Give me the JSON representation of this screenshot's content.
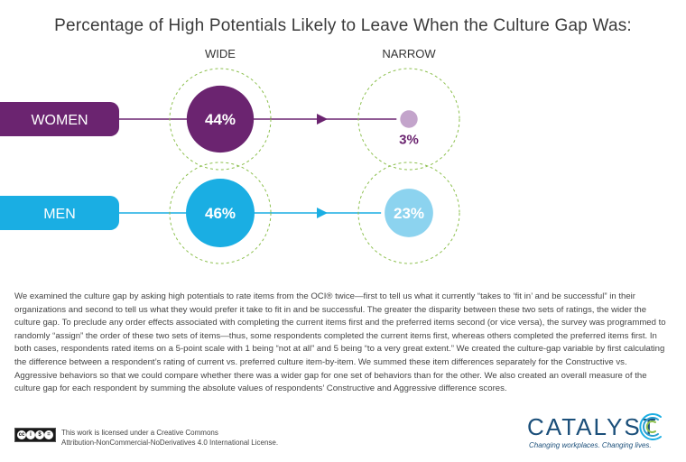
{
  "chart_data": {
    "type": "bubble-comparison",
    "title": "Percentage of High Potentials Likely to Leave When the Culture Gap Was:",
    "columns": [
      "WIDE",
      "NARROW"
    ],
    "series": [
      {
        "name": "WOMEN",
        "values": [
          44,
          3
        ],
        "labels": [
          "44%",
          "3%"
        ],
        "color": "#6b2470",
        "narrow_color": "#c3a4cb"
      },
      {
        "name": "MEN",
        "values": [
          46,
          23
        ],
        "labels": [
          "46%",
          "23%"
        ],
        "color": "#1aaee3",
        "narrow_color": "#8cd3ef"
      }
    ],
    "scale_max": 100,
    "outline_color": "#8dc04f"
  },
  "methodology": "We examined the culture gap by asking high potentials to rate items from the OCI® twice—first to tell us what it currently “takes to ‘fit in’ and be successful” in their organizations and second to tell us what they would prefer it take to fit in and be successful. The greater the disparity between these two sets of ratings, the wider the culture gap. To preclude any order effects associated with completing the current items first and the preferred items second (or vice versa), the survey was programmed to randomly “assign” the order of these two sets of items—thus, some respondents completed the current items first, whereas others completed the preferred items first. In both cases, respondents rated items on a 5-point scale with 1 being “not at all” and 5 being “to a very great extent.” We created the culture-gap variable by first calculating the difference between a respondent’s rating of current vs. preferred culture item-by-item. We summed these item differences separately for the Constructive vs. Aggressive behaviors so that we could compare whether there was a wider gap for one set of behaviors than for the other. We also created an overall measure of the culture gap for each respondent by summing the absolute values of respondents’ Constructive and Aggressive difference scores.",
  "license": {
    "line1": "This work is licensed under a Creative Commons",
    "line2": "Attribution-NonCommercial-NoDerivatives 4.0 International License."
  },
  "logo": {
    "name": "CATALYST",
    "tagline": "Changing workplaces. Changing lives.",
    "color": "#1b4f7a"
  }
}
